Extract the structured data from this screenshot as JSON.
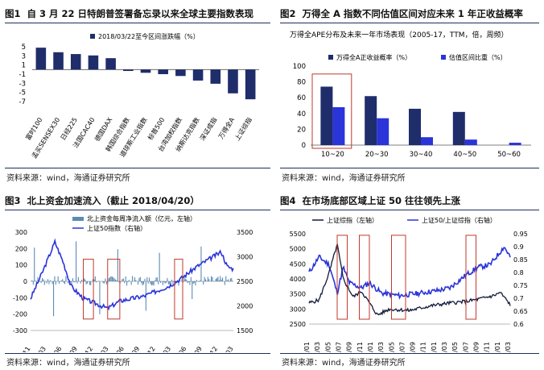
{
  "panels": [
    {
      "id": "p1",
      "num": "图1",
      "title": "自 3 月 22 日特朗普签署备忘录以来全球主要指数表现",
      "source": "资料来源：wind，海通证券研究所"
    },
    {
      "id": "p2",
      "num": "图2",
      "title": "万得全 A 指数不同估值区间对应未来 1 年正收益概率",
      "source": "资料来源：wind，海通证券研究所"
    },
    {
      "id": "p3",
      "num": "图3",
      "title": "北上资金加速流入（截止 2018/04/20）",
      "source": "资料来源：wind，海通证券研究所"
    },
    {
      "id": "p4",
      "num": "图4",
      "title": "在市场底部区域上证 50 往往领先上涨",
      "source": "资料来源：wind，海通证券研究所"
    }
  ],
  "chart_data": [
    {
      "type": "bar",
      "legend": [
        "2018/03/22至今区间涨跌幅（%）"
      ],
      "categories": [
        "富时100",
        "孟买SENSEX30",
        "日经225",
        "法国CAC40",
        "德国DAX",
        "韩国综合指数",
        "道琼斯工业指数",
        "标普500",
        "台湾加权指数",
        "纳斯达克指数",
        "深证成指",
        "万得全A",
        "上证综指"
      ],
      "values": [
        4.8,
        3.8,
        3.4,
        3.1,
        2.5,
        -0.3,
        -0.7,
        -1.0,
        -1.4,
        -2.4,
        -3.1,
        -5.2,
        -6.5
      ],
      "ylim": [
        -7,
        5
      ],
      "yticks": [
        5,
        3,
        1,
        -1,
        -3,
        -5,
        -7
      ],
      "colors": {
        "bar": "#1f2d6b"
      }
    },
    {
      "type": "bar",
      "subtitle": "万得全APE分布及未来一年市场表现（2005-17，TTM，倍，周频）",
      "categories": [
        "10~20",
        "20~30",
        "30~40",
        "40~50",
        "50~60"
      ],
      "series": [
        {
          "name": "万得全A正收益概率（%）",
          "values": [
            74,
            62,
            46,
            42,
            0
          ]
        },
        {
          "name": "估值区间比重（%）",
          "values": [
            48,
            34,
            10,
            7,
            3
          ]
        }
      ],
      "ylim": [
        0,
        100
      ],
      "yticks": [
        0,
        20,
        40,
        60,
        80,
        100
      ],
      "colors": {
        "s1": "#1f2d6b",
        "s2": "#2a34d8",
        "highlight": "#c0392b"
      }
    },
    {
      "type": "line",
      "series": [
        {
          "name": "北上资金每周净流入额（亿元，左轴）",
          "kind": "bar"
        },
        {
          "name": "上证50指数（右轴）",
          "kind": "line"
        }
      ],
      "xticks": [
        "14/11",
        "15/03",
        "15/06",
        "15/09",
        "15/12",
        "16/03",
        "16/06",
        "16/09",
        "16/12",
        "17/03",
        "17/06",
        "17/09",
        "17/12",
        "18/03"
      ],
      "yticks_left": [
        -300,
        -200,
        -100,
        0,
        100,
        200,
        300
      ],
      "yticks_right": [
        1500,
        2000,
        2500,
        3000,
        3500
      ],
      "colors": {
        "bar": "#5b8bb5",
        "line": "#2a34d8",
        "highlight": "#c0392b"
      }
    },
    {
      "type": "line",
      "series": [
        {
          "name": "上证综指（左轴）",
          "kind": "line"
        },
        {
          "name": "上证50/上证综指（右轴）",
          "kind": "line"
        }
      ],
      "xticks": [
        "15/01",
        "15/03",
        "15/05",
        "15/07",
        "15/09",
        "15/11",
        "16/01",
        "16/03",
        "16/05",
        "16/07",
        "16/09",
        "16/11",
        "17/01",
        "17/03",
        "17/05",
        "17/07",
        "17/09",
        "17/11",
        "18/01",
        "18/03"
      ],
      "yticks_left": [
        2500,
        3000,
        3500,
        4000,
        4500,
        5000,
        5500
      ],
      "yticks_right": [
        0.6,
        0.65,
        0.7,
        0.75,
        0.8,
        0.85,
        0.9,
        0.95
      ],
      "colors": {
        "s1": "#111b3a",
        "s2": "#2a34d8",
        "highlight": "#c0392b"
      }
    }
  ]
}
